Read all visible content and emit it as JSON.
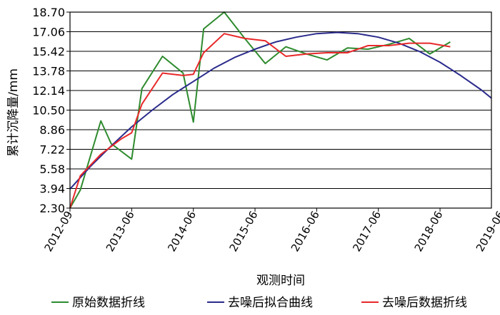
{
  "chart_data": {
    "type": "line",
    "xlabel": "观测时间",
    "ylabel": "累计沉降量/mm",
    "ylim": [
      2.3,
      18.7
    ],
    "y_ticks": [
      "2.30",
      "3.94",
      "5.58",
      "7.22",
      "8.86",
      "10.50",
      "12.14",
      "13.78",
      "15.42",
      "17.06",
      "18.70"
    ],
    "x_ticks": [
      "2012-09",
      "2013-06",
      "2014-06",
      "2015-06",
      "2016-06",
      "2017-06",
      "2018-06",
      "2019-06"
    ],
    "grid": "horizontal",
    "legend_position": "bottom",
    "series": [
      {
        "name": "原始数据折线",
        "color": "#2e8b2e",
        "points": [
          [
            0,
            2.3
          ],
          [
            1,
            3.8
          ],
          [
            3,
            9.6
          ],
          [
            4,
            7.7
          ],
          [
            6,
            6.4
          ],
          [
            7,
            12.3
          ],
          [
            9,
            15.0
          ],
          [
            11,
            13.6
          ],
          [
            12,
            9.5
          ],
          [
            13,
            17.3
          ],
          [
            15,
            18.7
          ],
          [
            17,
            16.5
          ],
          [
            19,
            14.4
          ],
          [
            21,
            15.8
          ],
          [
            23,
            15.2
          ],
          [
            25,
            14.7
          ],
          [
            27,
            15.7
          ],
          [
            29,
            15.6
          ],
          [
            31,
            16.0
          ],
          [
            33,
            16.5
          ],
          [
            35,
            15.2
          ],
          [
            37,
            16.2
          ]
        ]
      },
      {
        "name": "去噪后拟合曲线",
        "color": "#2b2b8c",
        "points": [
          [
            0,
            3.9
          ],
          [
            2,
            5.8
          ],
          [
            4,
            7.5
          ],
          [
            6,
            9.1
          ],
          [
            8,
            10.5
          ],
          [
            10,
            11.8
          ],
          [
            12,
            12.9
          ],
          [
            14,
            14.0
          ],
          [
            16,
            14.9
          ],
          [
            18,
            15.6
          ],
          [
            20,
            16.2
          ],
          [
            22,
            16.6
          ],
          [
            24,
            16.9
          ],
          [
            26,
            17.0
          ],
          [
            28,
            16.9
          ],
          [
            30,
            16.6
          ],
          [
            32,
            16.1
          ],
          [
            34,
            15.4
          ],
          [
            36,
            14.5
          ],
          [
            38,
            13.4
          ],
          [
            40,
            12.2
          ],
          [
            41,
            11.5
          ]
        ]
      },
      {
        "name": "去噪后数据折线",
        "color": "#e8282a",
        "points": [
          [
            0,
            2.3
          ],
          [
            1,
            5.0
          ],
          [
            3,
            6.8
          ],
          [
            5,
            8.1
          ],
          [
            6,
            8.6
          ],
          [
            7,
            11.0
          ],
          [
            9,
            13.6
          ],
          [
            11,
            13.4
          ],
          [
            12,
            13.5
          ],
          [
            13,
            15.3
          ],
          [
            15,
            16.9
          ],
          [
            17,
            16.5
          ],
          [
            19,
            16.3
          ],
          [
            21,
            15.0
          ],
          [
            23,
            15.2
          ],
          [
            25,
            15.3
          ],
          [
            27,
            15.3
          ],
          [
            29,
            15.9
          ],
          [
            31,
            15.9
          ],
          [
            33,
            16.1
          ],
          [
            35,
            16.1
          ],
          [
            37,
            15.8
          ]
        ]
      }
    ]
  }
}
